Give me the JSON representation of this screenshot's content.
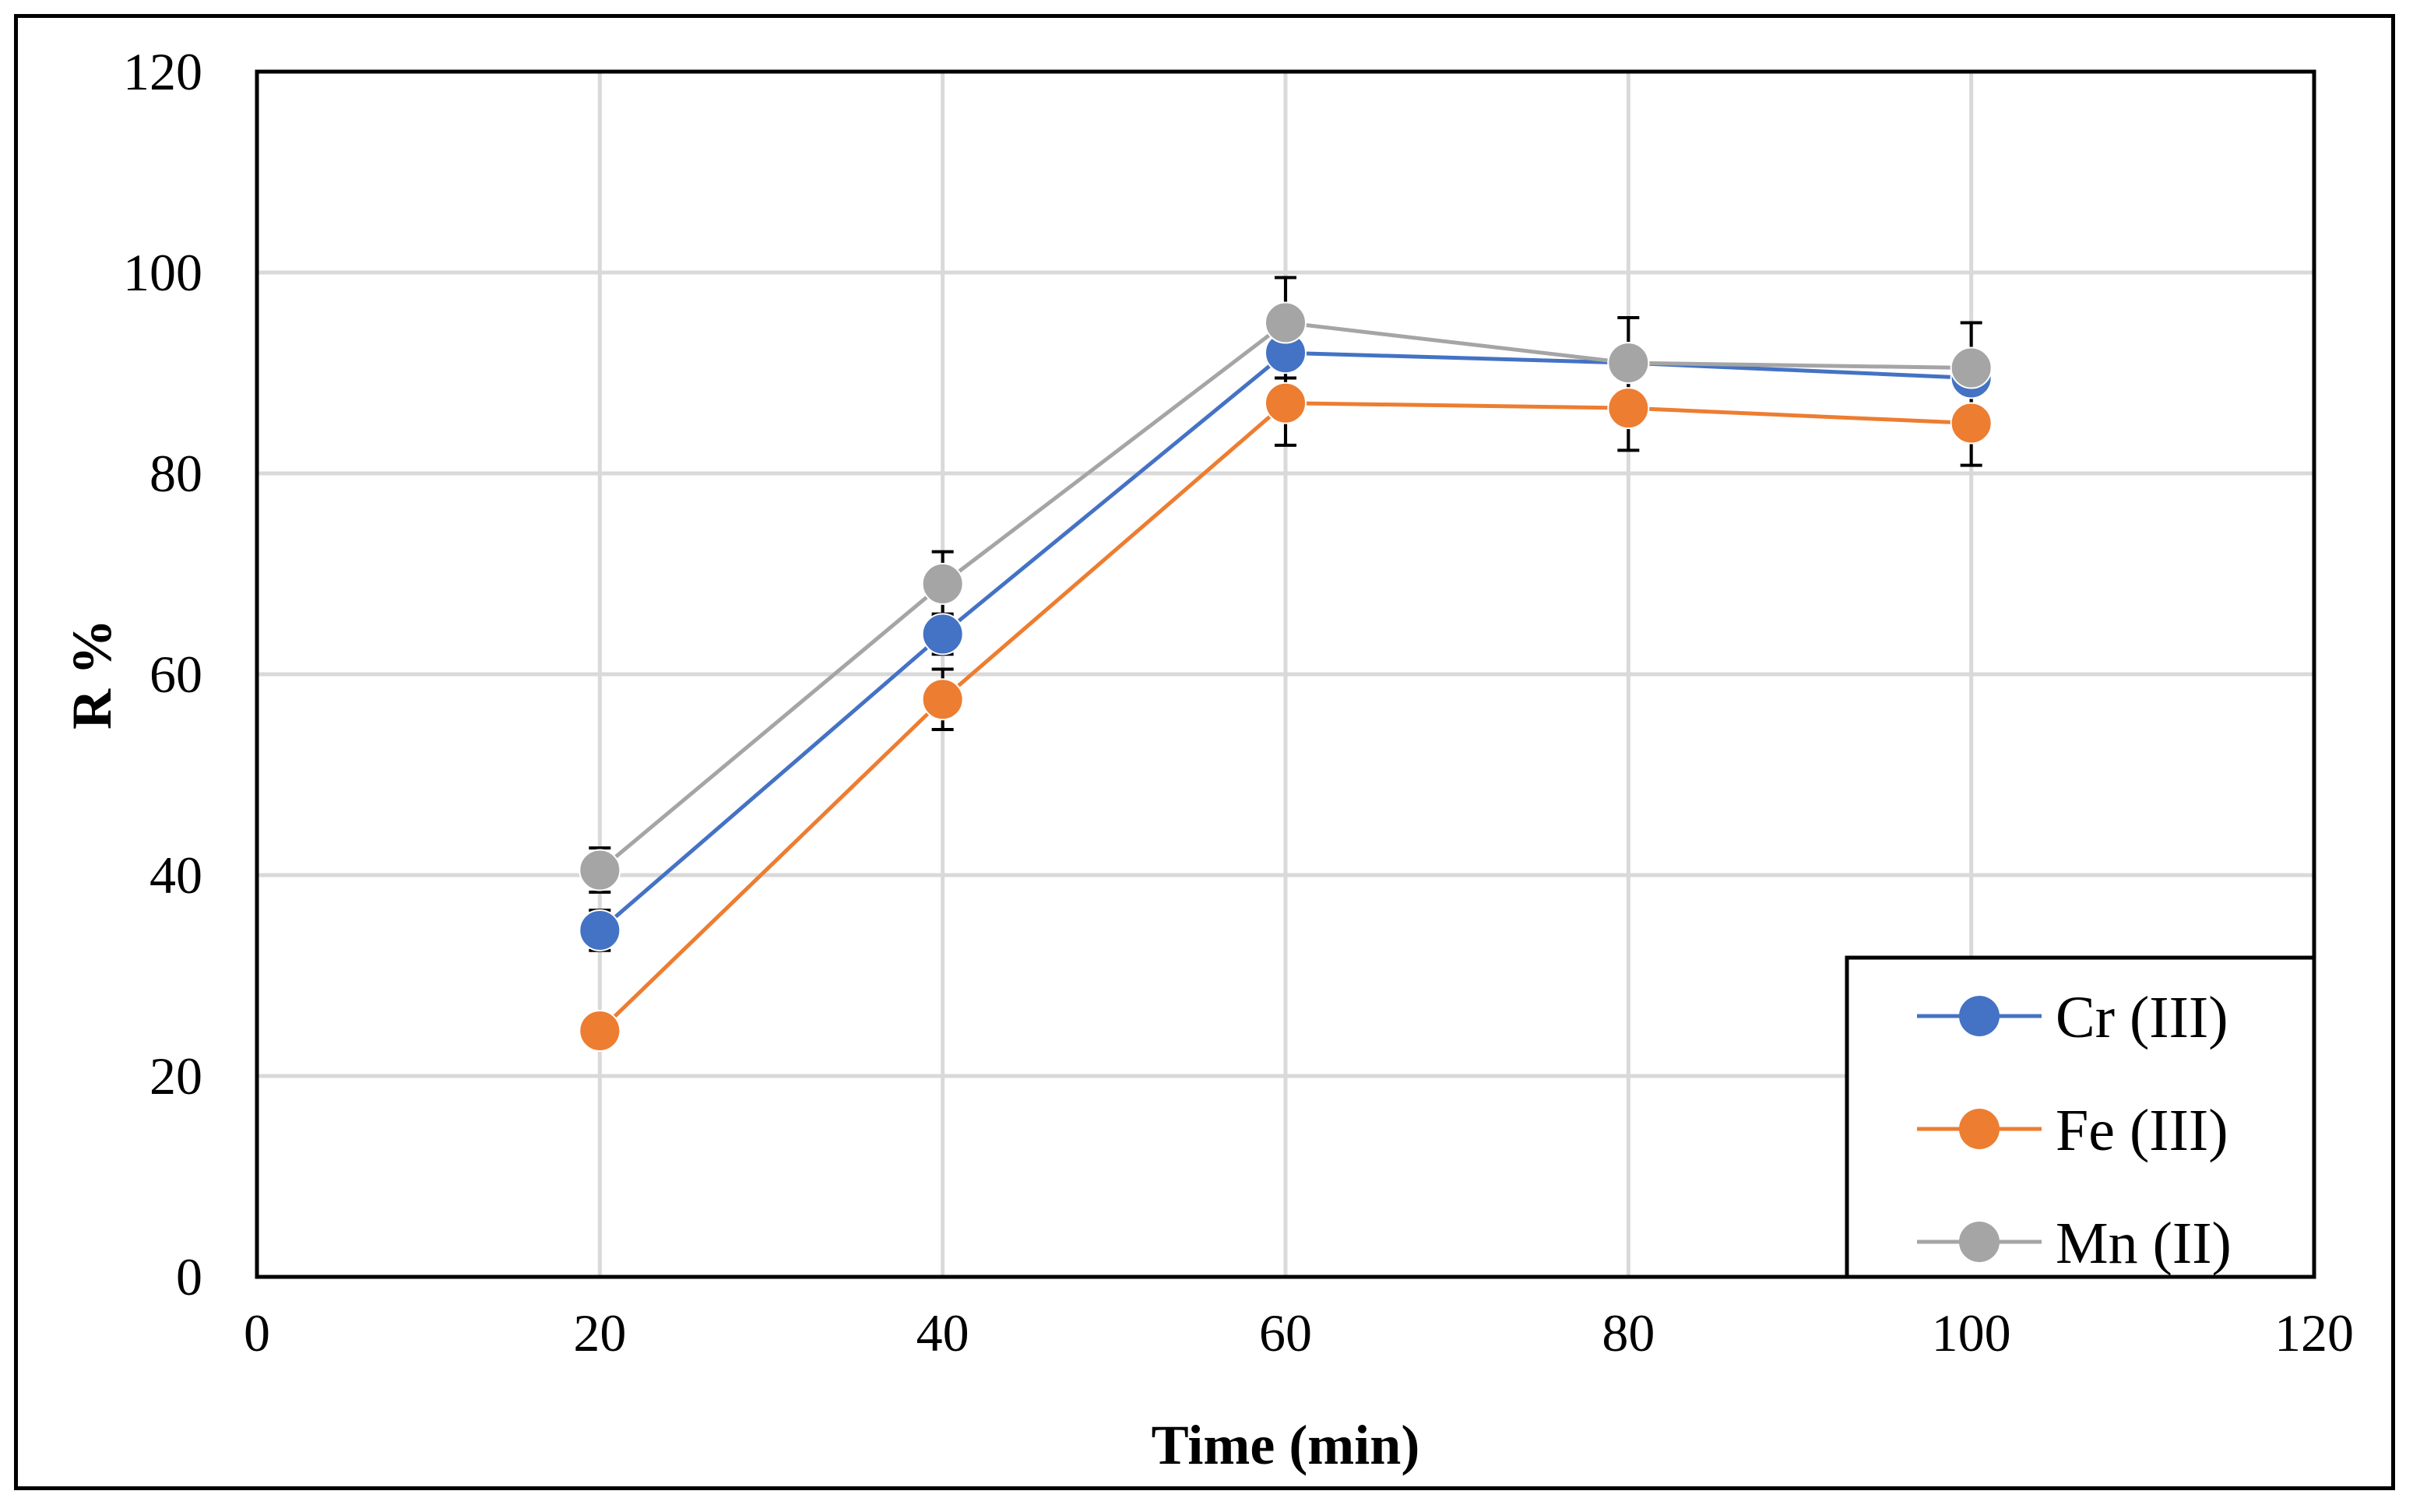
{
  "chart_data": {
    "type": "line",
    "title": "",
    "xlabel": "Time (min)",
    "ylabel": "R %",
    "xlim": [
      0,
      120
    ],
    "ylim": [
      0,
      120
    ],
    "x_ticks": [
      0,
      20,
      40,
      60,
      80,
      100,
      120
    ],
    "y_ticks": [
      0,
      20,
      40,
      60,
      80,
      100,
      120
    ],
    "grid": true,
    "legend_position": "bottom-right",
    "x": [
      20,
      40,
      60,
      80,
      100
    ],
    "series": [
      {
        "name": "Cr (III)",
        "color": "#4472C4",
        "values": [
          34.5,
          64,
          92,
          91,
          89.5
        ],
        "errors": [
          2,
          2,
          2.5,
          1.5,
          1.5
        ]
      },
      {
        "name": "Fe (III)",
        "color": "#ED7D31",
        "values": [
          24.5,
          57.5,
          87,
          86.5,
          85
        ],
        "errors": [
          1.5,
          3,
          4.2,
          4.2,
          4.2
        ]
      },
      {
        "name": "Mn (II)",
        "color": "#A5A5A5",
        "values": [
          40.5,
          69,
          95,
          91,
          90.5
        ],
        "errors": [
          2.2,
          3.2,
          4.5,
          4.5,
          4.5
        ]
      }
    ]
  }
}
